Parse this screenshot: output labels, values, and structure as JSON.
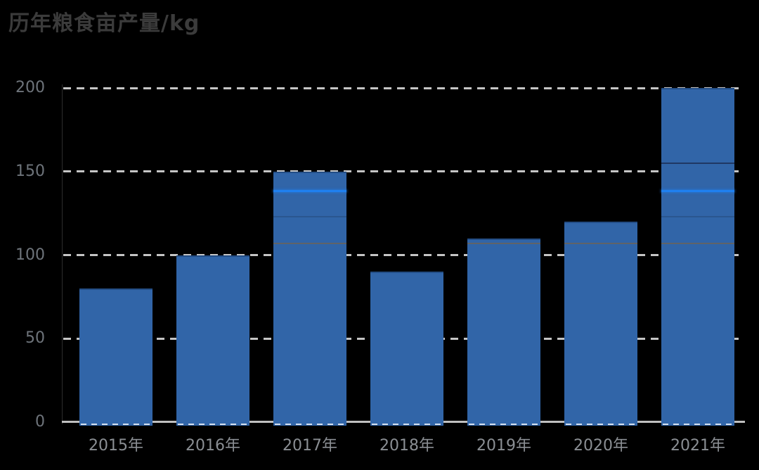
{
  "title": {
    "text": "历年粮食亩产量/kg"
  },
  "colors": {
    "background": "#000000",
    "bar": "#3165a8",
    "bar_top_border": "#234d85",
    "gridline": "#d6d6d6",
    "baseline": "#bfbfbf",
    "y_label": "#6e747b",
    "x_label": "#8a8e93",
    "title": "#3b3b3b",
    "highlight_line": "#1f80f0",
    "inner_line_gray": "#5f6368",
    "inner_line_dark": "#1f3864"
  },
  "y_axis": {
    "tick_labels": [
      "200",
      "150",
      "100",
      "50",
      "0"
    ]
  },
  "chart_data": {
    "type": "bar",
    "title": "历年粮食亩产量/kg",
    "categories": [
      "2015年",
      "2016年",
      "2017年",
      "2018年",
      "2019年",
      "2020年",
      "2021年"
    ],
    "values": [
      80,
      100,
      150,
      90,
      110,
      120,
      200
    ],
    "xlabel": "",
    "ylabel": "",
    "ylim": [
      0,
      200
    ],
    "y_ticks": [
      0,
      50,
      100,
      150,
      200
    ],
    "grid": "horizontal-dashed",
    "legend": "none",
    "bar_color": "#3165a8",
    "bars": [
      {
        "label": "2015年",
        "value": 80,
        "inner_lines": []
      },
      {
        "label": "2016年",
        "value": 100,
        "inner_lines": []
      },
      {
        "label": "2017年",
        "value": 150,
        "inner_lines": [
          {
            "value": 138,
            "style": "bright"
          },
          {
            "value": 123,
            "style": "faint"
          },
          {
            "value": 107,
            "style": "gray"
          }
        ]
      },
      {
        "label": "2018年",
        "value": 90,
        "inner_lines": []
      },
      {
        "label": "2019年",
        "value": 110,
        "inner_lines": [
          {
            "value": 107,
            "style": "gray"
          }
        ]
      },
      {
        "label": "2020年",
        "value": 120,
        "inner_lines": [
          {
            "value": 107,
            "style": "gray"
          }
        ]
      },
      {
        "label": "2021年",
        "value": 200,
        "inner_lines": [
          {
            "value": 155,
            "style": "dark"
          },
          {
            "value": 138,
            "style": "bright"
          },
          {
            "value": 123,
            "style": "faint"
          },
          {
            "value": 107,
            "style": "gray"
          }
        ]
      }
    ]
  }
}
